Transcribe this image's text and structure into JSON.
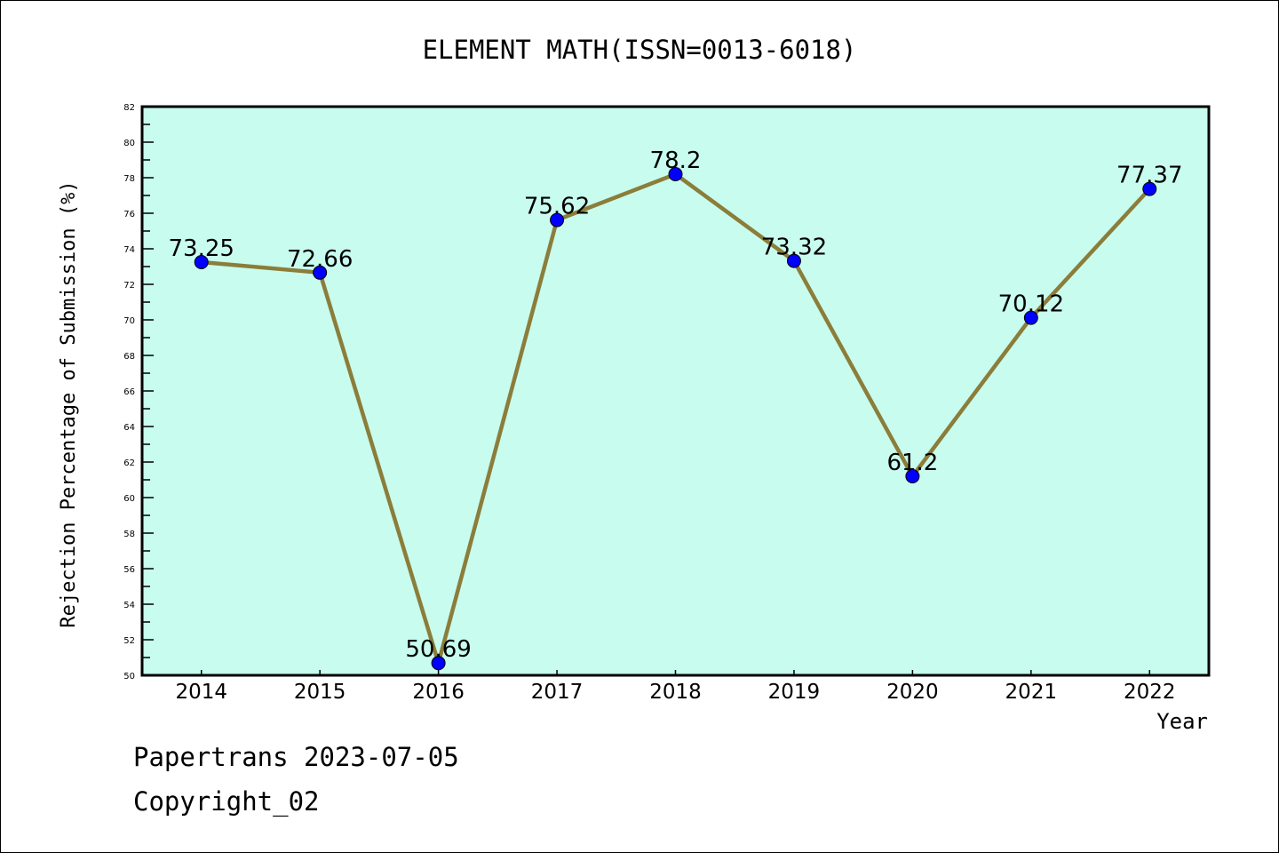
{
  "chart_data": {
    "type": "line",
    "title": "ELEMENT MATH(ISSN=0013-6018)",
    "xlabel": "Year",
    "ylabel": "Rejection Percentage of Submission (%)",
    "categories": [
      "2014",
      "2015",
      "2016",
      "2017",
      "2018",
      "2019",
      "2020",
      "2021",
      "2022"
    ],
    "values": [
      73.25,
      72.66,
      50.69,
      75.62,
      78.2,
      73.32,
      61.2,
      70.12,
      77.37
    ],
    "data_labels": [
      "73.25",
      "72.66",
      "50.69",
      "75.62",
      "78.2",
      "73.32",
      "61.2",
      "70.12",
      "77.37"
    ],
    "ylim": [
      50,
      82
    ],
    "yticks": [
      50,
      52,
      54,
      56,
      58,
      60,
      62,
      64,
      66,
      68,
      70,
      72,
      74,
      76,
      78,
      80,
      82
    ],
    "grid": false,
    "colors": {
      "background": "#c8fcee",
      "line": "#8b7d3a",
      "marker": "#0000ff"
    }
  },
  "footer": {
    "line1": "Papertrans 2023-07-05",
    "line2": "Copyright_02"
  }
}
